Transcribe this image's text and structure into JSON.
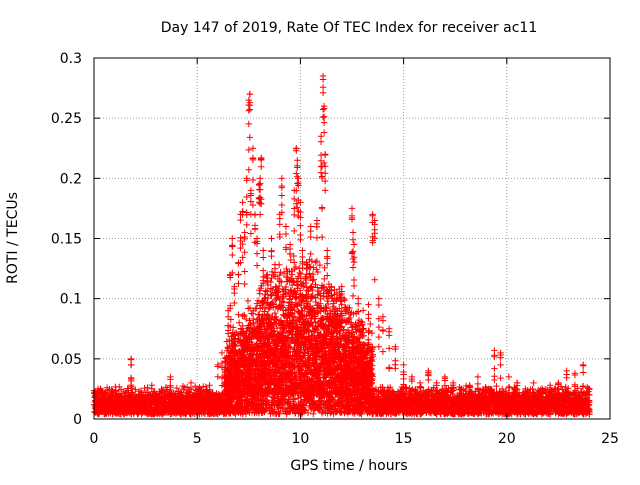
{
  "chart_data": {
    "type": "scatter",
    "title": "Day 147 of 2019, Rate Of TEC Index for receiver ac11",
    "xlabel": "GPS time / hours",
    "ylabel": "ROTI / TECUs",
    "xlim": [
      0,
      25
    ],
    "ylim": [
      0,
      0.3
    ],
    "xticks": [
      0,
      5,
      10,
      15,
      20,
      25
    ],
    "yticks": [
      0,
      0.05,
      0.1,
      0.15,
      0.2,
      0.25,
      0.3
    ],
    "xtick_labels": [
      "0",
      "5",
      "10",
      "15",
      "20",
      "25"
    ],
    "ytick_labels": [
      "0",
      "0.05",
      "0.1",
      "0.15",
      "0.2",
      "0.25",
      "0.3"
    ],
    "grid": true,
    "marker": "+",
    "color": "#ff0000",
    "series": [
      {
        "envelope_hint": "dense band 0-0.03 across 0-24h, enhanced 6.5-13h, isolated spikes",
        "points": [
          [
            0.2,
            0.012
          ],
          [
            0.5,
            0.018
          ],
          [
            0.9,
            0.022
          ],
          [
            1.3,
            0.015
          ],
          [
            1.8,
            0.05
          ],
          [
            1.8,
            0.045
          ],
          [
            2.3,
            0.02
          ],
          [
            2.8,
            0.028
          ],
          [
            3.3,
            0.018
          ],
          [
            3.7,
            0.035
          ],
          [
            4.2,
            0.022
          ],
          [
            4.7,
            0.03
          ],
          [
            5.1,
            0.025
          ],
          [
            5.6,
            0.028
          ],
          [
            6.0,
            0.045
          ],
          [
            6.2,
            0.055
          ],
          [
            6.5,
            0.09
          ],
          [
            6.6,
            0.12
          ],
          [
            6.7,
            0.15
          ],
          [
            6.8,
            0.11
          ],
          [
            7.0,
            0.13
          ],
          [
            7.1,
            0.17
          ],
          [
            7.2,
            0.18
          ],
          [
            7.3,
            0.155
          ],
          [
            7.4,
            0.2
          ],
          [
            7.5,
            0.265
          ],
          [
            7.55,
            0.27
          ],
          [
            7.6,
            0.19
          ],
          [
            7.7,
            0.225
          ],
          [
            7.8,
            0.17
          ],
          [
            7.9,
            0.15
          ],
          [
            8.0,
            0.195
          ],
          [
            8.05,
            0.2
          ],
          [
            8.1,
            0.217
          ],
          [
            8.2,
            0.14
          ],
          [
            8.4,
            0.12
          ],
          [
            8.6,
            0.15
          ],
          [
            8.8,
            0.11
          ],
          [
            9.0,
            0.17
          ],
          [
            9.1,
            0.2
          ],
          [
            9.3,
            0.16
          ],
          [
            9.5,
            0.145
          ],
          [
            9.6,
            0.12
          ],
          [
            9.7,
            0.19
          ],
          [
            9.8,
            0.225
          ],
          [
            9.85,
            0.215
          ],
          [
            9.9,
            0.2
          ],
          [
            10.0,
            0.18
          ],
          [
            10.1,
            0.14
          ],
          [
            10.3,
            0.13
          ],
          [
            10.5,
            0.16
          ],
          [
            10.8,
            0.165
          ],
          [
            11.0,
            0.235
          ],
          [
            11.05,
            0.21
          ],
          [
            11.1,
            0.285
          ],
          [
            11.15,
            0.26
          ],
          [
            11.2,
            0.22
          ],
          [
            11.3,
            0.14
          ],
          [
            11.5,
            0.11
          ],
          [
            11.8,
            0.09
          ],
          [
            12.0,
            0.11
          ],
          [
            12.2,
            0.09
          ],
          [
            12.5,
            0.175
          ],
          [
            12.55,
            0.155
          ],
          [
            12.6,
            0.145
          ],
          [
            12.8,
            0.1
          ],
          [
            13.0,
            0.08
          ],
          [
            13.3,
            0.095
          ],
          [
            13.5,
            0.17
          ],
          [
            13.6,
            0.165
          ],
          [
            13.8,
            0.1
          ],
          [
            14.0,
            0.085
          ],
          [
            14.3,
            0.075
          ],
          [
            14.6,
            0.06
          ],
          [
            15.0,
            0.045
          ],
          [
            15.4,
            0.035
          ],
          [
            15.8,
            0.03
          ],
          [
            16.2,
            0.04
          ],
          [
            16.6,
            0.03
          ],
          [
            17.0,
            0.035
          ],
          [
            17.4,
            0.03
          ],
          [
            17.8,
            0.025
          ],
          [
            18.2,
            0.028
          ],
          [
            18.6,
            0.035
          ],
          [
            19.0,
            0.025
          ],
          [
            19.4,
            0.057
          ],
          [
            19.7,
            0.055
          ],
          [
            20.1,
            0.035
          ],
          [
            20.5,
            0.03
          ],
          [
            20.9,
            0.025
          ],
          [
            21.3,
            0.03
          ],
          [
            21.7,
            0.022
          ],
          [
            22.1,
            0.028
          ],
          [
            22.5,
            0.03
          ],
          [
            22.9,
            0.04
          ],
          [
            23.3,
            0.038
          ],
          [
            23.7,
            0.045
          ],
          [
            24.0,
            0.025
          ]
        ]
      }
    ]
  }
}
